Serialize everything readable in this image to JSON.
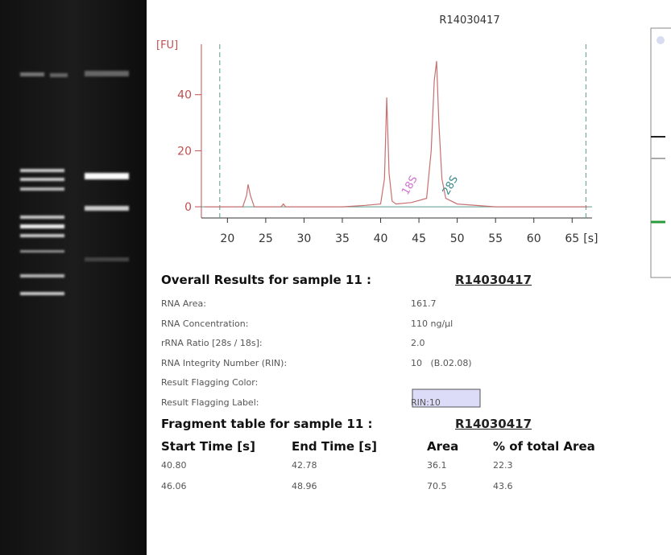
{
  "chart_data": {
    "type": "line",
    "title": "R14030417",
    "ylabel": "[FU]",
    "xlabel": "[s]",
    "x": [
      17,
      19,
      22,
      22.5,
      22.7,
      23,
      23.5,
      27,
      27.3,
      27.6,
      35,
      38,
      40,
      40.5,
      40.8,
      41.1,
      41.5,
      42,
      44,
      46,
      46.6,
      47,
      47.3,
      47.6,
      48,
      48.5,
      50,
      55,
      67
    ],
    "values": [
      0,
      0,
      0,
      4,
      8,
      4,
      0,
      0,
      1,
      0,
      0,
      0.5,
      1,
      10,
      39,
      12,
      2,
      1,
      1.5,
      3,
      20,
      45,
      52,
      30,
      10,
      3,
      1,
      0,
      0
    ],
    "color": "#c87070",
    "baseline_color": "#5a9a8a",
    "axis_color": "#c05050",
    "xlim": [
      16.6,
      67.6
    ],
    "ylim": [
      -4,
      58
    ],
    "xticks": [
      20,
      25,
      30,
      35,
      40,
      45,
      50,
      55,
      60,
      65
    ],
    "yticks": [
      0,
      20,
      40
    ],
    "vlines": [
      19,
      66.8
    ],
    "annotations": [
      {
        "text": "18S",
        "x": 43.5,
        "color": "#d070d0"
      },
      {
        "text": "28S",
        "x": 48.8,
        "color": "#3a8a8a"
      }
    ]
  },
  "results": {
    "heading": "Overall Results for sample 11 :",
    "sample": "R14030417",
    "rows": [
      {
        "label": "RNA Area:",
        "value": "161.7"
      },
      {
        "label": "RNA Concentration:",
        "value": "110 ng/µl"
      },
      {
        "label": "rRNA Ratio [28s / 18s]:",
        "value": "2.0"
      },
      {
        "label": "RNA Integrity Number (RIN):",
        "value": "10   (B.02.08)"
      },
      {
        "label": "Result Flagging Color:"
      },
      {
        "label": "Result Flagging Label:",
        "value": "RIN:10"
      }
    ]
  },
  "fragments": {
    "heading": "Fragment table for sample 11 :",
    "sample": "R14030417",
    "columns": [
      "Start Time [s]",
      "End Time [s]",
      "Area",
      "% of total Area"
    ],
    "rows": [
      [
        "40.80",
        "42.78",
        "36.1",
        "22.3"
      ],
      [
        "46.06",
        "48.96",
        "70.5",
        "43.6"
      ]
    ]
  }
}
